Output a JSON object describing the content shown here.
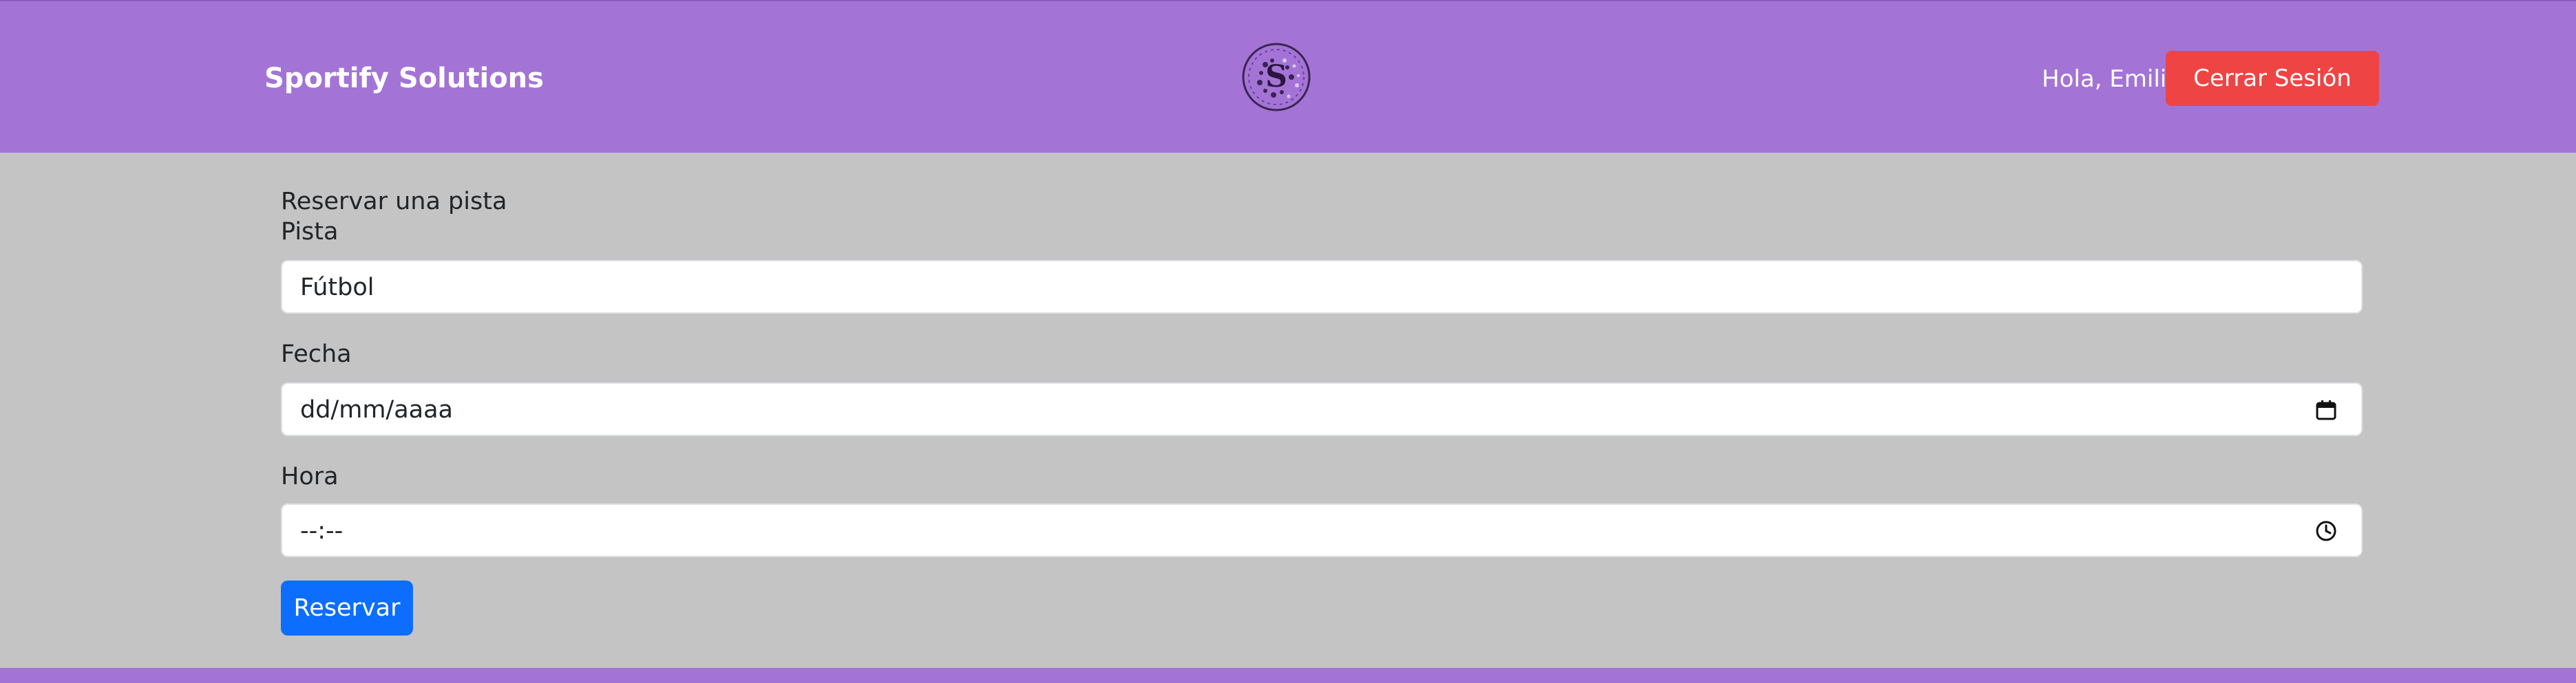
{
  "header": {
    "brand": "Sportify Solutions",
    "logo_icon": "sportify-logo-icon",
    "greeting": "Hola, Emilio",
    "logout_label": "Cerrar Sesión"
  },
  "form": {
    "title": "Reservar una pista",
    "court_label": "Pista",
    "court_value": "Fútbol",
    "date_label": "Fecha",
    "date_value": "dd/mm/aaaa",
    "date_icon": "calendar-icon",
    "time_label": "Hora",
    "time_value": "--:--",
    "time_icon": "clock-icon",
    "submit_label": "Reservar"
  },
  "colors": {
    "header_bg": "#a374d5",
    "page_bg": "#c4c4c4",
    "logout_bg": "#ef4444",
    "submit_bg": "#0d6efd"
  }
}
